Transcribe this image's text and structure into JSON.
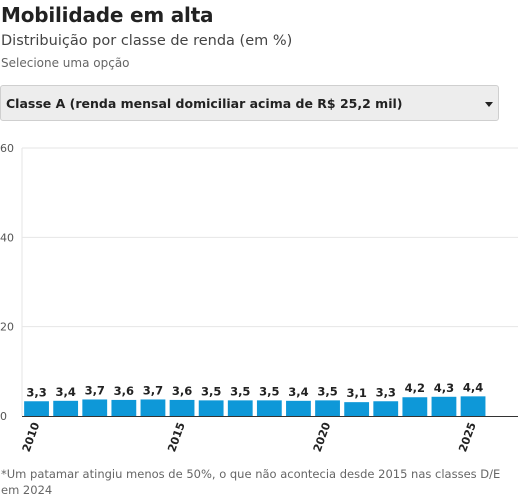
{
  "header": {
    "title": "Mobilidade em alta",
    "subtitle": "Distribuição por classe de renda (em %)"
  },
  "selector": {
    "label": "Selecione uma opção",
    "selected": "Classe A (renda mensal domiciliar acima de R$ 25,2 mil)"
  },
  "footnote": "*Um patamar atingiu menos de 50%, o que não acontecia desde 2015 nas classes D/E em 2024",
  "colors": {
    "bar": "#0e98d8",
    "grid": "#e6e6e6",
    "axis": "#333333"
  },
  "chart_data": {
    "type": "bar",
    "categories": [
      "2010",
      "2011",
      "2012",
      "2013",
      "2014",
      "2015",
      "2016",
      "2017",
      "2018",
      "2019",
      "2020",
      "2021",
      "2022",
      "2023",
      "2024",
      "2025"
    ],
    "values": [
      3.3,
      3.4,
      3.7,
      3.6,
      3.7,
      3.6,
      3.5,
      3.5,
      3.5,
      3.4,
      3.5,
      3.1,
      3.3,
      4.2,
      4.3,
      4.4
    ],
    "value_labels": [
      "3,3",
      "3,4",
      "3,7",
      "3,6",
      "3,7",
      "3,6",
      "3,5",
      "3,5",
      "3,5",
      "3,4",
      "3,5",
      "3,1",
      "3,3",
      "4,2",
      "4,3",
      "4,4"
    ],
    "tick_labels": [
      "2010",
      "2015",
      "2020",
      "2025"
    ],
    "y_ticks": [
      0,
      20,
      40,
      60
    ],
    "y_tick_labels": [
      "0",
      "20",
      "40",
      "60"
    ],
    "ylim": [
      0,
      60
    ],
    "grid": true,
    "xlabel": "",
    "ylabel": ""
  }
}
